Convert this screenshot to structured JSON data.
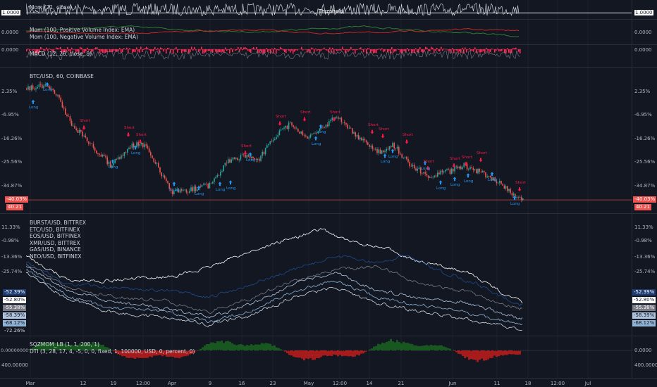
{
  "colors": {
    "background": "#131722",
    "grid": "#1e2230",
    "up_candle": "#26a69a",
    "down_candle": "#ef5350",
    "long": "#2196f3",
    "short": "#ff1744",
    "white_line": "#e0e3eb",
    "red_hist": "#ff2b55"
  },
  "pane1": {
    "legend": "Mom (21, close)",
    "threshold_label": "Threshold",
    "left_tick": "1.0000",
    "right_tick": "1.0000"
  },
  "pane2": {
    "legend": [
      "Mom (100, Positive Volume Index: EMA)",
      "Mom (100, Negative Volume Index: EMA)"
    ],
    "left_tick": "0.0000",
    "right_tick": "0.0000"
  },
  "pane3": {
    "legend": "MACD (12, 26, close, 9)",
    "left_tick": "0.0000",
    "right_tick": "0.0000"
  },
  "main": {
    "symbol_legend": "BTC/USD, 60, COINBASE",
    "left_ticks": [
      "2.35%",
      "-6.95%",
      "-16.26%",
      "-25.56%",
      "-34.87%"
    ],
    "right_ticks": [
      "2.35%",
      "-6.95%",
      "-16.26%",
      "-25.56%",
      "-34.87%"
    ],
    "last_pct": "-40.03%",
    "last_price": "40.21",
    "long_label": "Long",
    "short_label": "Short"
  },
  "compare": {
    "legend": [
      "BURST/USD, BITTREX",
      "ETC/USD, BITFINEX",
      "EOS/USD, BITFINEX",
      "XMR/USD, BITTREX",
      "GAS/USD, BINANCE",
      "NEO/USD, BITFINEX"
    ],
    "left_ticks": [
      "11.33%",
      "-0.98%",
      "-13.36%",
      "-25.74%"
    ],
    "right_ticks": [
      "11.33%",
      "-0.98%",
      "-13.36%",
      "-25.74%"
    ],
    "badges": [
      "-52.39%",
      "-52.80%",
      "-55.38%",
      "-58.39%",
      "-68.12%",
      "-72.26%"
    ]
  },
  "osc": {
    "legend": [
      "SQZMOM_LB (1, 1, 200, 1)",
      "DTI (3, 28, 17, 4, -5, 0, 0, fixed, 1, 100000, USD, 0, percent, 0)"
    ],
    "left_ticks": [
      "0.00000000",
      "400.00000"
    ],
    "right_ticks": [
      "0.0000",
      "400.0000"
    ]
  },
  "xaxis": [
    "Mar",
    "12",
    "19",
    "12:00",
    "Apr",
    "9",
    "16",
    "23",
    "May",
    "12:00",
    "14",
    "21",
    "Jun",
    "11",
    "18",
    "12:00",
    "Jul"
  ]
}
